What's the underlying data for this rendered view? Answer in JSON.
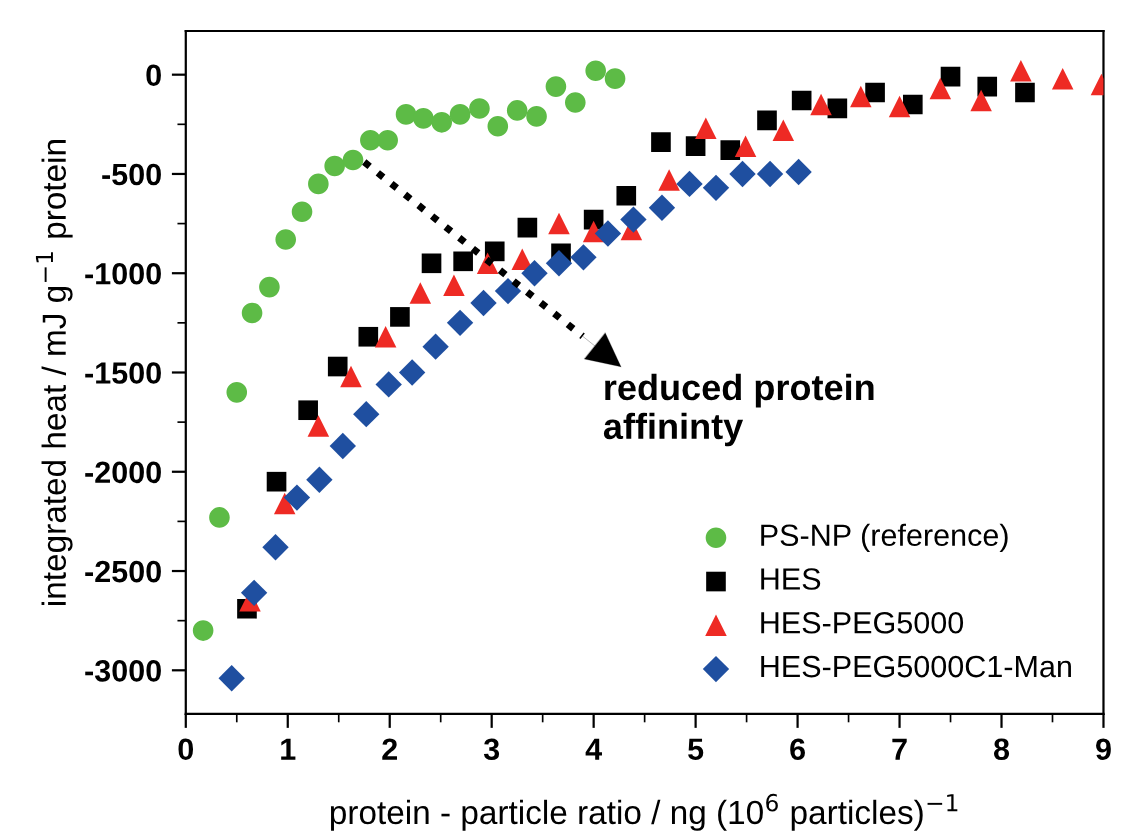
{
  "chart_data": {
    "type": "scatter",
    "xlabel": "protein - particle ratio / ng (10$^{6}$ particles)$^{−1}$",
    "ylabel": "integrated heat / mJ g$^{−1}$ protein",
    "xlim": [
      0,
      9
    ],
    "ylim": [
      -3220,
      220
    ],
    "xticks": [
      0,
      1,
      2,
      3,
      4,
      5,
      6,
      7,
      8,
      9
    ],
    "yticks": [
      -3000,
      -2500,
      -2000,
      -1500,
      -1000,
      -500,
      0
    ],
    "legend": "bottom right",
    "grid": false,
    "annotations": [
      {
        "text": "reduced protein\naffininty",
        "x": 1.75,
        "y": -440
      }
    ],
    "series": [
      {
        "name": "PS-NP (reference)",
        "color": "#5dbb46",
        "marker": "circle",
        "x": [
          0.17,
          0.33,
          0.5,
          0.65,
          0.82,
          0.98,
          1.14,
          1.3,
          1.46,
          1.64,
          1.81,
          1.98,
          2.16,
          2.33,
          2.51,
          2.69,
          2.88,
          3.06,
          3.25,
          3.44,
          3.63,
          3.82,
          4.02,
          4.21
        ],
        "values": [
          -2800,
          -2230,
          -1600,
          -1200,
          -1070,
          -830,
          -690,
          -550,
          -460,
          -430,
          -330,
          -330,
          -200,
          -220,
          -240,
          -200,
          -170,
          -260,
          -180,
          -210,
          -60,
          -140,
          20,
          -20
        ]
      },
      {
        "name": "HES",
        "color": "#000000",
        "marker": "square",
        "x": [
          0.6,
          0.89,
          1.2,
          1.49,
          1.79,
          2.1,
          2.41,
          2.72,
          3.03,
          3.35,
          3.68,
          4.0,
          4.32,
          4.66,
          5.0,
          5.34,
          5.7,
          6.04,
          6.39,
          6.76,
          7.13,
          7.5,
          7.86,
          8.23
        ],
        "values": [
          -2690,
          -2050,
          -1690,
          -1470,
          -1320,
          -1220,
          -950,
          -940,
          -890,
          -770,
          -900,
          -730,
          -610,
          -340,
          -360,
          -380,
          -230,
          -130,
          -170,
          -90,
          -150,
          -10,
          -60,
          -90
        ]
      },
      {
        "name": "HES-PEG5000",
        "color": "#ee2a24",
        "marker": "triangle",
        "x": [
          0.63,
          0.97,
          1.3,
          1.62,
          1.96,
          2.3,
          2.63,
          2.96,
          3.3,
          3.66,
          4.0,
          4.37,
          4.74,
          5.1,
          5.49,
          5.86,
          6.23,
          6.62,
          7.0,
          7.4,
          7.8,
          8.19,
          8.6,
          8.98
        ],
        "values": [
          -2650,
          -2160,
          -1770,
          -1520,
          -1320,
          -1100,
          -1060,
          -950,
          -930,
          -750,
          -790,
          -780,
          -530,
          -270,
          -360,
          -280,
          -150,
          -110,
          -160,
          -70,
          -130,
          20,
          -20,
          -50
        ]
      },
      {
        "name": "HES-PEG5000C1-Man",
        "color": "#1f4fa0",
        "marker": "diamond",
        "x": [
          0.45,
          0.67,
          0.88,
          1.09,
          1.31,
          1.54,
          1.77,
          1.99,
          2.22,
          2.45,
          2.69,
          2.92,
          3.16,
          3.42,
          3.66,
          3.9,
          4.14,
          4.39,
          4.67,
          4.94,
          5.2,
          5.46,
          5.73,
          6.01
        ],
        "values": [
          -3040,
          -2610,
          -2380,
          -2130,
          -2040,
          -1870,
          -1710,
          -1560,
          -1500,
          -1370,
          -1250,
          -1150,
          -1090,
          -1000,
          -950,
          -920,
          -800,
          -730,
          -670,
          -550,
          -570,
          -500,
          -500,
          -490
        ]
      }
    ]
  }
}
